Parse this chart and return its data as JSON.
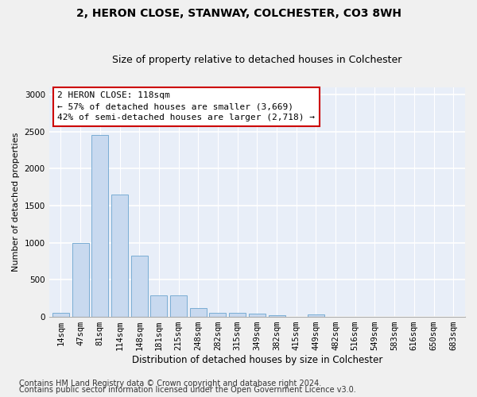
{
  "title1": "2, HERON CLOSE, STANWAY, COLCHESTER, CO3 8WH",
  "title2": "Size of property relative to detached houses in Colchester",
  "xlabel": "Distribution of detached houses by size in Colchester",
  "ylabel": "Number of detached properties",
  "categories": [
    "14sqm",
    "47sqm",
    "81sqm",
    "114sqm",
    "148sqm",
    "181sqm",
    "215sqm",
    "248sqm",
    "282sqm",
    "315sqm",
    "349sqm",
    "382sqm",
    "415sqm",
    "449sqm",
    "482sqm",
    "516sqm",
    "549sqm",
    "583sqm",
    "616sqm",
    "650sqm",
    "683sqm"
  ],
  "values": [
    50,
    1000,
    2450,
    1650,
    830,
    290,
    290,
    120,
    50,
    50,
    40,
    25,
    0,
    30,
    0,
    0,
    0,
    0,
    0,
    0,
    0
  ],
  "bar_color": "#c8d9ef",
  "bar_edge_color": "#7aadd4",
  "annotation_text": "2 HERON CLOSE: 118sqm\n← 57% of detached houses are smaller (3,669)\n42% of semi-detached houses are larger (2,718) →",
  "annotation_box_color": "#ffffff",
  "annotation_box_edge_color": "#cc0000",
  "ylim": [
    0,
    3100
  ],
  "yticks": [
    0,
    500,
    1000,
    1500,
    2000,
    2500,
    3000
  ],
  "footer1": "Contains HM Land Registry data © Crown copyright and database right 2024.",
  "footer2": "Contains public sector information licensed under the Open Government Licence v3.0.",
  "fig_bg_color": "#f0f0f0",
  "plot_bg_color": "#e8eef8",
  "grid_color": "#ffffff",
  "title1_fontsize": 10,
  "title2_fontsize": 9,
  "xlabel_fontsize": 8.5,
  "ylabel_fontsize": 8,
  "tick_fontsize": 7.5,
  "annot_fontsize": 8,
  "footer_fontsize": 7
}
